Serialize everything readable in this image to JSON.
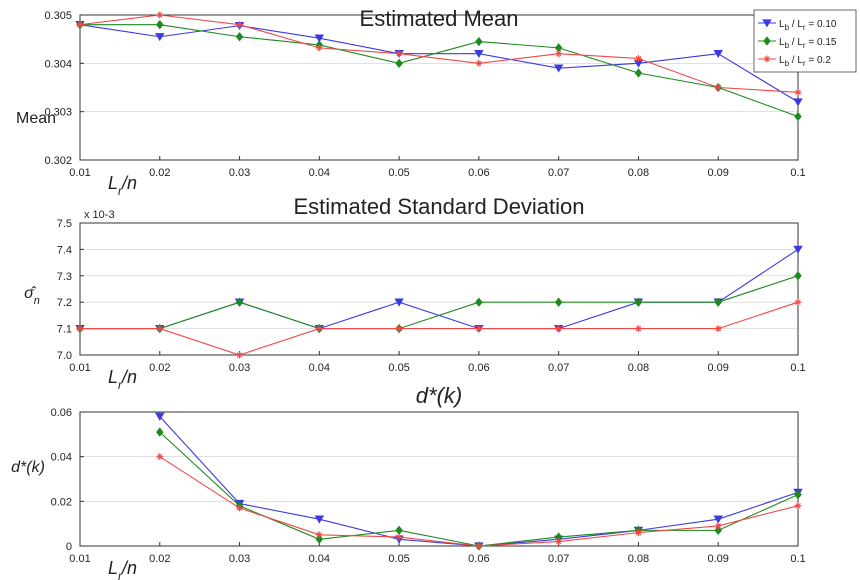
{
  "legend": {
    "entries": [
      "L_b / L_r = 0.10",
      "L_b / L_r = 0.15",
      "L_b / L_r = 0.2"
    ],
    "placement": "top-right"
  },
  "colors": {
    "series": [
      "#3a3ae0",
      "#1d8a1d",
      "#f04848"
    ],
    "axis": "#333333",
    "grid": "#cfcfcf"
  },
  "chart_data": [
    {
      "type": "line",
      "title": "Estimated Mean",
      "ylabel": "Mean",
      "xlabel": "L_r/n",
      "ylim": [
        0.302,
        0.305
      ],
      "yticks": [
        0.302,
        0.303,
        0.304,
        0.305
      ],
      "x": [
        0.01,
        0.02,
        0.03,
        0.04,
        0.05,
        0.06,
        0.07,
        0.08,
        0.09,
        0.1
      ],
      "xtick_labels": [
        "0.01",
        "0.02",
        "0.03",
        "0.04",
        "0.05",
        "0.06",
        "0.07",
        "0.08",
        "0.09",
        "0.1"
      ],
      "series": [
        {
          "name": "L_b / L_r = 0.10",
          "marker": "triangle-down",
          "values": [
            0.3048,
            0.30455,
            0.30478,
            0.30452,
            0.3042,
            0.3042,
            0.3039,
            0.304,
            0.3042,
            0.3032
          ]
        },
        {
          "name": "L_b / L_r = 0.15",
          "marker": "diamond",
          "values": [
            0.3048,
            0.3048,
            0.30455,
            0.30438,
            0.304,
            0.30445,
            0.30432,
            0.3038,
            0.3035,
            0.3029
          ]
        },
        {
          "name": "L_b / L_r = 0.2",
          "marker": "star",
          "values": [
            0.3048,
            0.305,
            0.3048,
            0.30432,
            0.3042,
            0.304,
            0.3042,
            0.3041,
            0.3035,
            0.3034
          ]
        }
      ]
    },
    {
      "type": "line",
      "title": "Estimated Standard Deviation",
      "ylabel": "σ̂_n",
      "xlabel": "L_r/n",
      "y_scale_label": "x 10-3",
      "ylim": [
        7.0,
        7.5
      ],
      "yticks": [
        7.0,
        7.1,
        7.2,
        7.3,
        7.4,
        7.5
      ],
      "ytick_labels": [
        "7.0",
        "7.1",
        "7.2",
        "7.3",
        "7.4",
        "7.5"
      ],
      "x": [
        0.01,
        0.02,
        0.03,
        0.04,
        0.05,
        0.06,
        0.07,
        0.08,
        0.09,
        0.1
      ],
      "xtick_labels": [
        "0.01",
        "0.02",
        "0.03",
        "0.04",
        "0.05",
        "0.06",
        "0.07",
        "0.08",
        "0.09",
        "0.1"
      ],
      "series": [
        {
          "name": "L_b / L_r = 0.10",
          "marker": "triangle-down",
          "values": [
            7.1,
            7.1,
            7.2,
            7.1,
            7.2,
            7.1,
            7.1,
            7.2,
            7.2,
            7.4
          ]
        },
        {
          "name": "L_b / L_r = 0.15",
          "marker": "diamond",
          "values": [
            7.1,
            7.1,
            7.2,
            7.1,
            7.1,
            7.2,
            7.2,
            7.2,
            7.2,
            7.3
          ]
        },
        {
          "name": "L_b / L_r = 0.2",
          "marker": "star",
          "values": [
            7.1,
            7.1,
            7.0,
            7.1,
            7.1,
            7.1,
            7.1,
            7.1,
            7.1,
            7.2
          ]
        }
      ]
    },
    {
      "type": "line",
      "title": "d*(k)",
      "ylabel": "d*(k)",
      "xlabel": "L_r/n",
      "ylim": [
        0,
        0.06
      ],
      "yticks": [
        0,
        0.02,
        0.04,
        0.06
      ],
      "ytick_labels": [
        "0",
        "0.02",
        "0.04",
        "0.06"
      ],
      "x": [
        0.01,
        0.02,
        0.03,
        0.04,
        0.05,
        0.06,
        0.07,
        0.08,
        0.09,
        0.1
      ],
      "xtick_labels": [
        "0.01",
        "0.02",
        "0.03",
        "0.04",
        "0.05",
        "0.06",
        "0.07",
        "0.08",
        "0.09",
        "0.1"
      ],
      "series": [
        {
          "name": "L_b / L_r = 0.10",
          "marker": "triangle-down",
          "values": [
            null,
            0.058,
            0.019,
            0.012,
            0.003,
            0.0,
            0.003,
            0.007,
            0.012,
            0.024
          ]
        },
        {
          "name": "L_b / L_r = 0.15",
          "marker": "diamond",
          "values": [
            null,
            0.051,
            0.018,
            0.003,
            0.007,
            0.0,
            0.004,
            0.007,
            0.007,
            0.023
          ]
        },
        {
          "name": "L_b / L_r = 0.2",
          "marker": "star",
          "values": [
            null,
            0.04,
            0.017,
            0.005,
            0.004,
            0.0,
            0.002,
            0.006,
            0.009,
            0.018
          ]
        }
      ]
    }
  ]
}
